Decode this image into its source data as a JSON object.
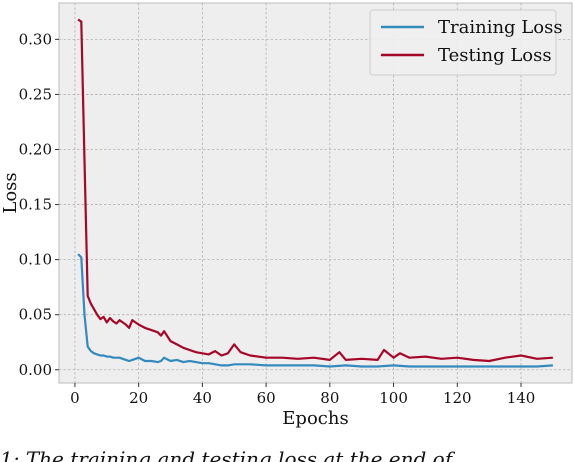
{
  "caption": "1: The training and testing loss at the end of",
  "chart_data": {
    "type": "line",
    "title": "",
    "xlabel": "Epochs",
    "ylabel": "Loss",
    "xlim": [
      -5,
      156
    ],
    "ylim": [
      -0.012,
      0.333
    ],
    "xticks": [
      0,
      20,
      40,
      60,
      80,
      100,
      120,
      140
    ],
    "yticks": [
      0.0,
      0.05,
      0.1,
      0.15,
      0.2,
      0.25,
      0.3
    ],
    "xtick_labels": [
      "0",
      "20",
      "40",
      "60",
      "80",
      "100",
      "120",
      "140"
    ],
    "ytick_labels": [
      "0.00",
      "0.05",
      "0.10",
      "0.15",
      "0.20",
      "0.25",
      "0.30"
    ],
    "grid": true,
    "legend_position": "top-right",
    "colors": {
      "training": "#348ABD",
      "testing": "#A60628",
      "background": "#EEEEEE",
      "grid": "#B2B2B2"
    },
    "series": [
      {
        "name": "Training Loss",
        "color": "#348ABD",
        "x": [
          1,
          2,
          3,
          4,
          5,
          6,
          7,
          8,
          9,
          10,
          11,
          12,
          13,
          14,
          15,
          16,
          17,
          18,
          19,
          20,
          22,
          24,
          26,
          27,
          28,
          30,
          32,
          34,
          36,
          38,
          40,
          42,
          44,
          46,
          48,
          50,
          55,
          60,
          65,
          70,
          75,
          80,
          85,
          90,
          95,
          100,
          105,
          110,
          115,
          120,
          125,
          130,
          135,
          140,
          145,
          150
        ],
        "y": [
          0.105,
          0.102,
          0.05,
          0.021,
          0.017,
          0.015,
          0.014,
          0.013,
          0.013,
          0.012,
          0.012,
          0.011,
          0.011,
          0.011,
          0.01,
          0.009,
          0.008,
          0.009,
          0.01,
          0.011,
          0.008,
          0.008,
          0.007,
          0.008,
          0.011,
          0.008,
          0.009,
          0.007,
          0.008,
          0.007,
          0.006,
          0.006,
          0.005,
          0.004,
          0.004,
          0.005,
          0.005,
          0.004,
          0.004,
          0.004,
          0.004,
          0.003,
          0.004,
          0.003,
          0.003,
          0.004,
          0.003,
          0.003,
          0.003,
          0.003,
          0.003,
          0.003,
          0.003,
          0.003,
          0.003,
          0.004
        ]
      },
      {
        "name": "Testing Loss",
        "color": "#A60628",
        "x": [
          1,
          2,
          3,
          4,
          5,
          6,
          7,
          8,
          9,
          10,
          11,
          12,
          13,
          14,
          15,
          16,
          17,
          18,
          19,
          20,
          22,
          24,
          26,
          27,
          28,
          30,
          32,
          34,
          36,
          38,
          40,
          42,
          44,
          46,
          48,
          50,
          52,
          55,
          60,
          65,
          70,
          75,
          80,
          83,
          85,
          90,
          95,
          97,
          100,
          102,
          105,
          110,
          115,
          120,
          125,
          130,
          135,
          140,
          145,
          150
        ],
        "y": [
          0.318,
          0.316,
          0.19,
          0.067,
          0.06,
          0.055,
          0.05,
          0.046,
          0.048,
          0.043,
          0.047,
          0.044,
          0.042,
          0.045,
          0.043,
          0.041,
          0.038,
          0.045,
          0.043,
          0.041,
          0.038,
          0.036,
          0.034,
          0.031,
          0.035,
          0.026,
          0.023,
          0.02,
          0.018,
          0.016,
          0.015,
          0.014,
          0.017,
          0.013,
          0.015,
          0.023,
          0.016,
          0.013,
          0.011,
          0.011,
          0.01,
          0.011,
          0.009,
          0.016,
          0.009,
          0.01,
          0.009,
          0.018,
          0.011,
          0.015,
          0.011,
          0.012,
          0.01,
          0.011,
          0.009,
          0.008,
          0.011,
          0.013,
          0.01,
          0.011
        ]
      }
    ]
  }
}
